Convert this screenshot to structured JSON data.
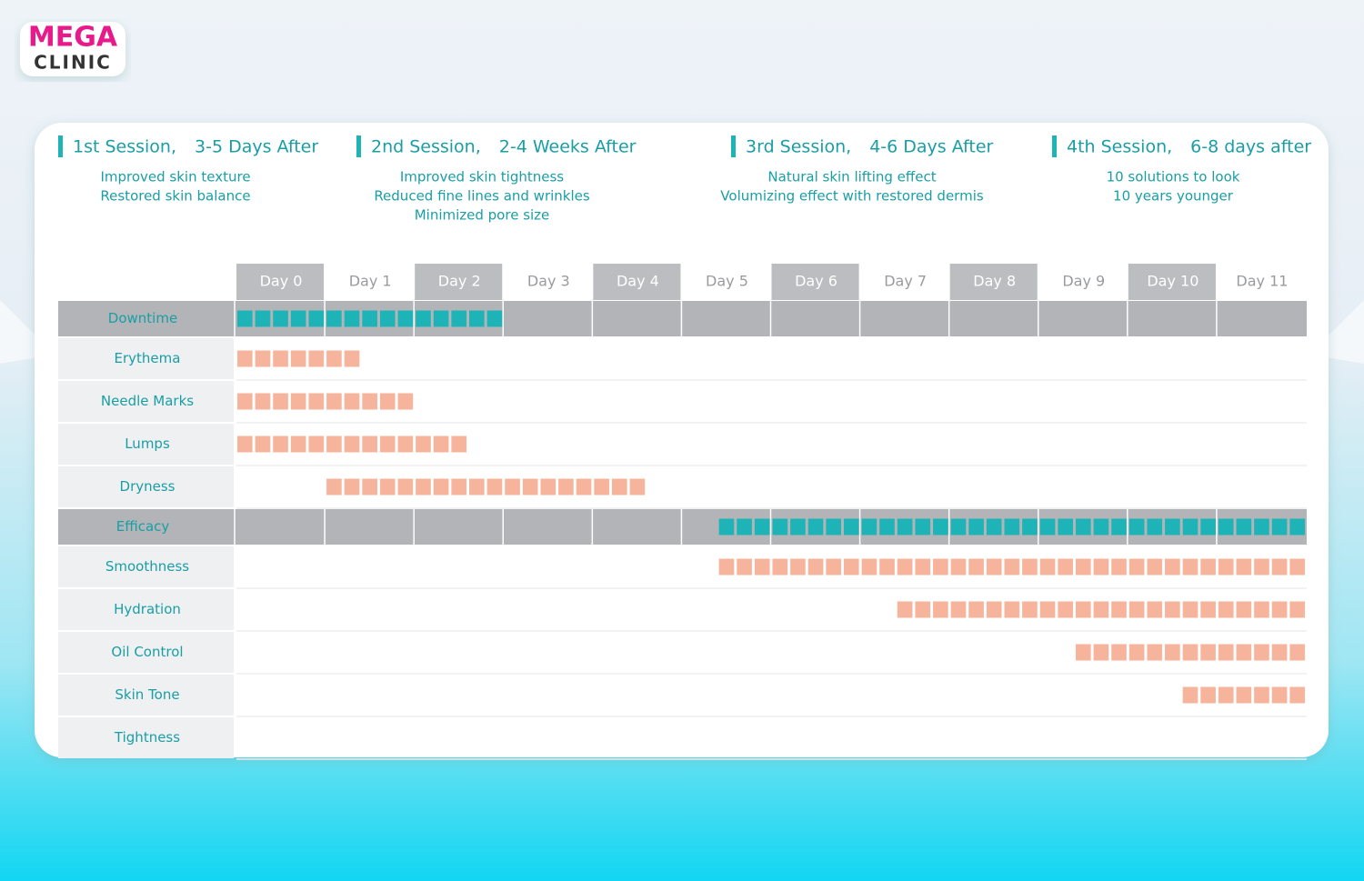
{
  "logo": {
    "line1": "MEGA",
    "line2": "CLINIC"
  },
  "chart_data": {
    "type": "gantt",
    "sessions": [
      {
        "title": "1st Session,",
        "timing": "3-5 Days After",
        "notes": [
          "Improved skin texture",
          "Restored skin balance"
        ]
      },
      {
        "title": "2nd Session,",
        "timing": "2-4 Weeks After",
        "notes": [
          "Improved skin tightness",
          "Reduced fine lines and wrinkles",
          "Minimized pore size"
        ]
      },
      {
        "title": "3rd Session,",
        "timing": "4-6 Days After",
        "notes": [
          "Natural skin lifting effect",
          "Volumizing effect with restored dermis"
        ]
      },
      {
        "title": "4th Session,",
        "timing": "6-8 days after",
        "notes": [
          "10 solutions to look",
          "10 years younger"
        ]
      }
    ],
    "categories": [
      "Day 0",
      "Day 1",
      "Day 2",
      "Day 3",
      "Day 4",
      "Day 5",
      "Day 6",
      "Day 7",
      "Day 8",
      "Day 9",
      "Day 10",
      "Day 11"
    ],
    "xlim": [
      0,
      12
    ],
    "groups": [
      {
        "name": "Downtime",
        "color": "#1db3b7",
        "start": 0,
        "end": 3,
        "items": [
          {
            "name": "Erythema",
            "color": "#f7b49c",
            "start": 0,
            "end": 1.4
          },
          {
            "name": "Needle Marks",
            "color": "#f7b49c",
            "start": 0,
            "end": 2
          },
          {
            "name": "Lumps",
            "color": "#f7b49c",
            "start": 0,
            "end": 2.6
          },
          {
            "name": "Dryness",
            "color": "#f7b49c",
            "start": 1,
            "end": 4.6
          }
        ]
      },
      {
        "name": "Efficacy",
        "color": "#1db3b7",
        "start": 5.4,
        "end": 12,
        "items": [
          {
            "name": "Smoothness",
            "color": "#f7b49c",
            "start": 5.4,
            "end": 12
          },
          {
            "name": "Hydration",
            "color": "#f7b49c",
            "start": 7.4,
            "end": 12
          },
          {
            "name": "Oil Control",
            "color": "#f7b49c",
            "start": 9.4,
            "end": 12
          },
          {
            "name": "Skin Tone",
            "color": "#f7b49c",
            "start": 10.6,
            "end": 12
          },
          {
            "name": "Tightness",
            "color": "#f7b49c",
            "start": null,
            "end": null
          }
        ]
      }
    ]
  }
}
